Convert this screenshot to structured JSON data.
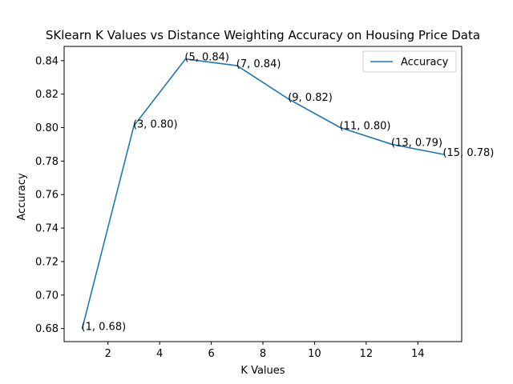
{
  "chart_data": {
    "type": "line",
    "title": "SKlearn K Values vs Distance Weighting Accuracy on Housing Price Data",
    "xlabel": "K Values",
    "ylabel": "Accuracy",
    "xlim": [
      0.3,
      15.7
    ],
    "ylim": [
      0.6722,
      0.8485
    ],
    "x_ticks": [
      2,
      4,
      6,
      8,
      10,
      12,
      14
    ],
    "y_ticks": [
      0.68,
      0.7,
      0.72,
      0.74,
      0.76,
      0.78,
      0.8,
      0.82,
      0.84
    ],
    "y_tick_labels": [
      "0.68",
      "0.70",
      "0.72",
      "0.74",
      "0.76",
      "0.78",
      "0.80",
      "0.82",
      "0.84"
    ],
    "x": [
      1,
      3,
      5,
      7,
      9,
      11,
      13,
      15
    ],
    "series": [
      {
        "name": "Accuracy",
        "color": "#1f77b4",
        "values": [
          0.68,
          0.801,
          0.841,
          0.837,
          0.817,
          0.8,
          0.79,
          0.784
        ]
      }
    ],
    "annotations": [
      "(1, 0.68)",
      "(3, 0.80)",
      "(5, 0.84)",
      "(7, 0.84)",
      "(9, 0.82)",
      "(11, 0.80)",
      "(13, 0.79)",
      "(15, 0.78)"
    ],
    "legend": {
      "position": "top-right",
      "entries": [
        "Accuracy"
      ]
    },
    "grid": false
  }
}
